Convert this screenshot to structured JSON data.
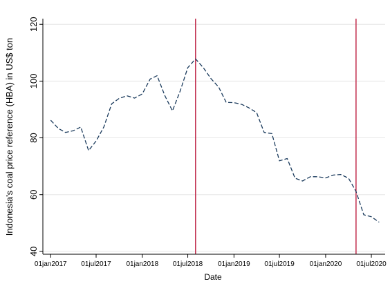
{
  "chart_data": {
    "type": "line",
    "title": "",
    "xlabel": "Date",
    "ylabel": "Indonesia's coal price reference (HBA) in US$ ton",
    "x_tick_labels": [
      "01jan2017",
      "01jul2017",
      "01jan2018",
      "01jul2018",
      "01jan2019",
      "01jul2019",
      "01jan2020",
      "01jul2020"
    ],
    "y_ticks": [
      40,
      60,
      80,
      100,
      120
    ],
    "xlim": [
      "2016-12-01",
      "2020-08-25"
    ],
    "ylim": [
      39,
      122
    ],
    "grid": "horizontal",
    "legend": "none",
    "series": [
      {
        "style": "dashed",
        "color": "#1a3a5c",
        "x": [
          "2017-01-01",
          "2017-02-01",
          "2017-03-01",
          "2017-04-01",
          "2017-05-01",
          "2017-06-01",
          "2017-07-01",
          "2017-08-01",
          "2017-09-01",
          "2017-10-01",
          "2017-11-01",
          "2017-12-01",
          "2018-01-01",
          "2018-02-01",
          "2018-03-01",
          "2018-04-01",
          "2018-05-01",
          "2018-06-01",
          "2018-07-01",
          "2018-08-01",
          "2018-09-01",
          "2018-10-01",
          "2018-11-01",
          "2018-12-01",
          "2019-01-01",
          "2019-02-01",
          "2019-03-01",
          "2019-04-01",
          "2019-05-01",
          "2019-06-01",
          "2019-07-01",
          "2019-08-01",
          "2019-09-01",
          "2019-10-01",
          "2019-11-01",
          "2019-12-01",
          "2020-01-01",
          "2020-02-01",
          "2020-03-01",
          "2020-04-01",
          "2020-05-01",
          "2020-06-01",
          "2020-07-01",
          "2020-08-01"
        ],
        "y": [
          86.2,
          83.3,
          81.9,
          82.5,
          83.8,
          75.5,
          78.9,
          83.9,
          92.0,
          93.9,
          94.8,
          94.0,
          95.5,
          100.7,
          101.9,
          94.8,
          89.5,
          96.6,
          104.7,
          107.8,
          104.7,
          100.9,
          97.9,
          92.5,
          92.4,
          91.8,
          90.6,
          88.9,
          81.9,
          81.5,
          71.9,
          72.7,
          65.8,
          64.8,
          66.3,
          66.3,
          65.9,
          66.9,
          67.1,
          65.8,
          61.1,
          52.9,
          52.2,
          50.3
        ]
      }
    ],
    "vertical_reference_lines": [
      {
        "x": "2018-08-01",
        "color": "#c0294a"
      },
      {
        "x": "2020-05-01",
        "color": "#c0294a"
      }
    ]
  }
}
